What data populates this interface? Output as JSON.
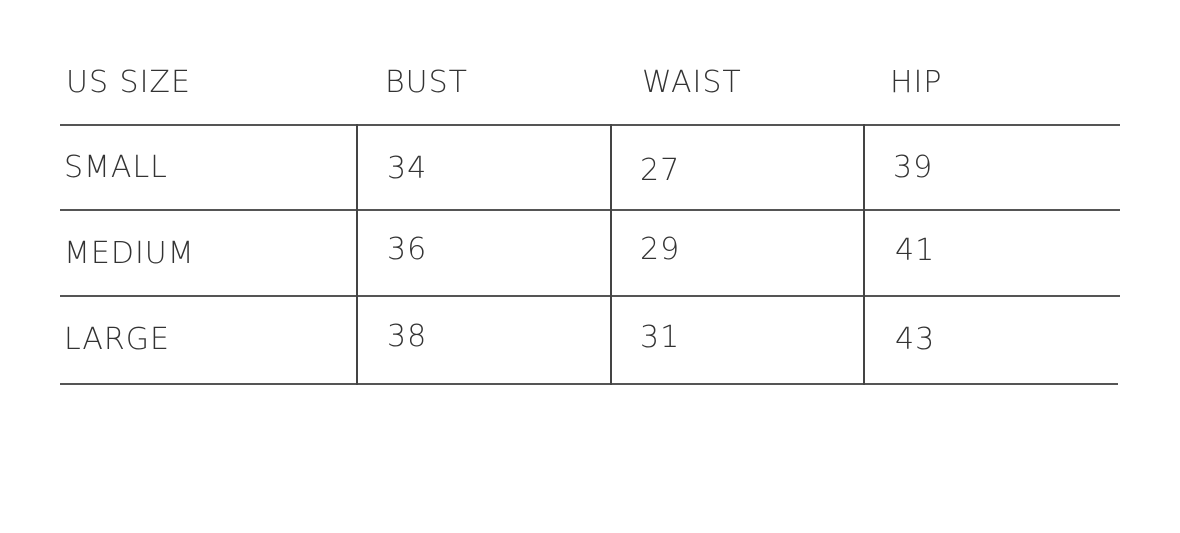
{
  "table": {
    "headers": [
      "US SIZE",
      "BUST",
      "WAIST",
      "HIP"
    ],
    "rows": [
      [
        "SMALL",
        "34",
        "27",
        "39"
      ],
      [
        "MEDIUM",
        "36",
        "29",
        "41"
      ],
      [
        "LARGE",
        "38",
        "31",
        "43"
      ]
    ]
  }
}
